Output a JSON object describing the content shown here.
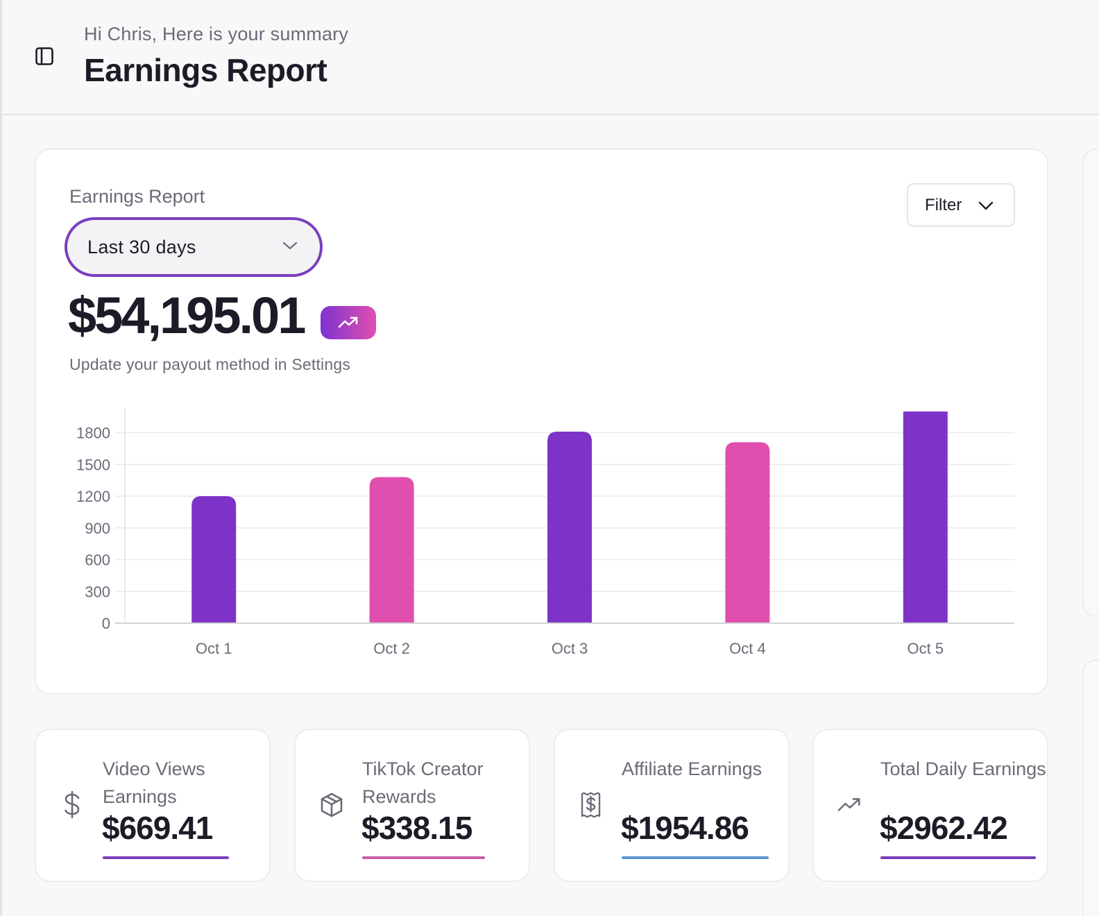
{
  "header": {
    "greeting": "Hi Chris, Here is your summary",
    "title": "Earnings Report",
    "sidebar_toggle_icon": "sidebar-panel-icon"
  },
  "report": {
    "card_title": "Earnings Report",
    "range": {
      "selected": "Last 30 days",
      "icon": "chevron-down-icon"
    },
    "filter": {
      "label": "Filter",
      "icon": "chevron-down-icon"
    },
    "total": "$54,195.01",
    "trend_icon": "trending-up-icon",
    "note": "Update your payout method in Settings"
  },
  "colors": {
    "accent_purple": "#7e33c8",
    "accent_pink": "#e04fae",
    "accent_blue": "#5b93cf",
    "text_dark": "#1c1c28",
    "text_muted": "#6b6b78"
  },
  "chart_data": {
    "type": "bar",
    "title": "",
    "xlabel": "",
    "ylabel": "",
    "categories": [
      "Oct 1",
      "Oct 2",
      "Oct 3",
      "Oct 4",
      "Oct 5"
    ],
    "values": [
      1200,
      1380,
      1810,
      1710,
      2000
    ],
    "bar_colors": [
      "#7e33c8",
      "#e04fae",
      "#7e33c8",
      "#e04fae",
      "#7e33c8"
    ],
    "yticks": [
      0,
      300,
      600,
      900,
      1200,
      1500,
      1800
    ],
    "ytick_labels": [
      "0",
      "300",
      "600",
      "900",
      "1200",
      "1500",
      "1800"
    ],
    "ylim": [
      0,
      2000
    ],
    "grid": true,
    "legend": "none"
  },
  "stats": [
    {
      "label": "Video Views Earnings",
      "value": "$669.41",
      "icon": "dollar-icon",
      "color": "#7a3fb8"
    },
    {
      "label": "TikTok Creator Rewards",
      "value": "$338.15",
      "icon": "package-icon",
      "color": "#c95fa6"
    },
    {
      "label": "Affiliate Earnings",
      "value": "$1954.86",
      "icon": "receipt-dollar-icon",
      "color": "#5b93cf"
    },
    {
      "label": "Total Daily Earnings",
      "value": "$2962.42",
      "icon": "trending-up-icon",
      "color": "#7a3fb8"
    }
  ]
}
